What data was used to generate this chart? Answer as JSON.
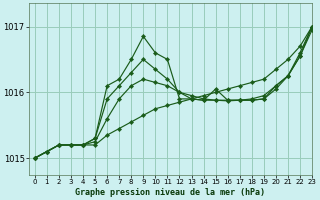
{
  "title": "Graphe pression niveau de la mer (hPa)",
  "bg_color": "#cdf0f0",
  "grid_color": "#99ccbb",
  "line_color": "#1a5c1a",
  "marker_color": "#1a5c1a",
  "xlim": [
    -0.5,
    23
  ],
  "ylim": [
    1014.75,
    1017.35
  ],
  "yticks": [
    1015,
    1016,
    1017
  ],
  "xticks": [
    0,
    1,
    2,
    3,
    4,
    5,
    6,
    7,
    8,
    9,
    10,
    11,
    12,
    13,
    14,
    15,
    16,
    17,
    18,
    19,
    20,
    21,
    22,
    23
  ],
  "series": [
    [
      1015.0,
      1015.1,
      1015.2,
      1015.2,
      1015.2,
      1015.2,
      1015.35,
      1015.45,
      1015.55,
      1015.65,
      1015.75,
      1015.8,
      1015.85,
      1015.9,
      1015.95,
      1016.0,
      1016.05,
      1016.1,
      1016.15,
      1016.2,
      1016.35,
      1016.5,
      1016.7,
      1017.0
    ],
    [
      1015.0,
      1015.1,
      1015.2,
      1015.2,
      1015.2,
      1015.25,
      1015.6,
      1015.9,
      1016.1,
      1016.2,
      1016.15,
      1016.1,
      1016.0,
      1015.95,
      1015.9,
      1015.88,
      1015.87,
      1015.88,
      1015.9,
      1015.95,
      1016.1,
      1016.25,
      1016.55,
      1016.95
    ],
    [
      1015.0,
      1015.1,
      1015.2,
      1015.2,
      1015.2,
      1015.3,
      1015.9,
      1016.1,
      1016.3,
      1016.5,
      1016.35,
      1016.2,
      1016.0,
      1015.9,
      1015.88,
      1015.88,
      1015.88,
      1015.88,
      1015.88,
      1015.9,
      1016.1,
      1016.25,
      1016.6,
      1017.0
    ],
    [
      1015.0,
      1015.1,
      1015.2,
      1015.2,
      1015.2,
      1015.3,
      1016.1,
      1016.2,
      1016.5,
      1016.85,
      1016.6,
      1016.5,
      1015.9,
      1015.9,
      1015.88,
      1016.05,
      1015.88,
      1015.88,
      1015.88,
      1015.9,
      1016.05,
      1016.25,
      1016.55,
      1017.0
    ]
  ]
}
